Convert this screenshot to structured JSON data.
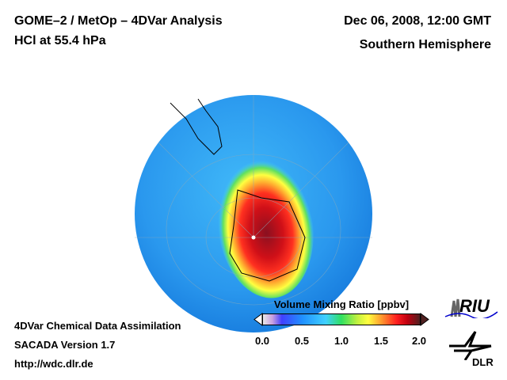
{
  "header": {
    "title_left_1": "GOME–2 / MetOp – 4DVar Analysis",
    "title_left_2": "HCl at 55.4 hPa",
    "title_right_1": "Dec 06, 2008, 12:00 GMT",
    "title_right_2": "Southern Hemisphere"
  },
  "footer": {
    "line1": "4DVar Chemical Data Assimilation",
    "line2": "SACADA Version 1.7",
    "line3": "http://wdc.dlr.de"
  },
  "colorbar": {
    "title": "Volume Mixing Ratio [ppbv]",
    "ticks": [
      "0.0",
      "0.5",
      "1.0",
      "1.5",
      "2.0"
    ],
    "range": [
      0.0,
      2.0
    ]
  },
  "logos": {
    "riu": "RIU",
    "dlr": "DLR"
  },
  "colors": {
    "ocean_low": "#3aa0ee",
    "high": "#c00010"
  }
}
